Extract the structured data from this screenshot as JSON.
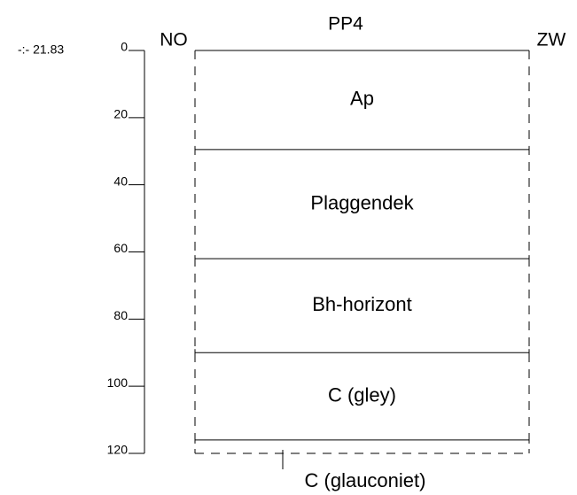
{
  "title": "PP4",
  "left_label": "NO",
  "right_label": "ZW",
  "elevation": "-:- 21.83",
  "depth_range": [
    0,
    120
  ],
  "depth_ticks": [
    0,
    20,
    40,
    60,
    80,
    100,
    120
  ],
  "horizons": [
    {
      "label": "Ap",
      "bottom": 29.5
    },
    {
      "label": "Plaggendek",
      "bottom": 62
    },
    {
      "label": "Bh-horizont",
      "bottom": 90
    },
    {
      "label": "C (gley)",
      "bottom": 116
    }
  ],
  "below_label": "C (glauconiet)"
}
